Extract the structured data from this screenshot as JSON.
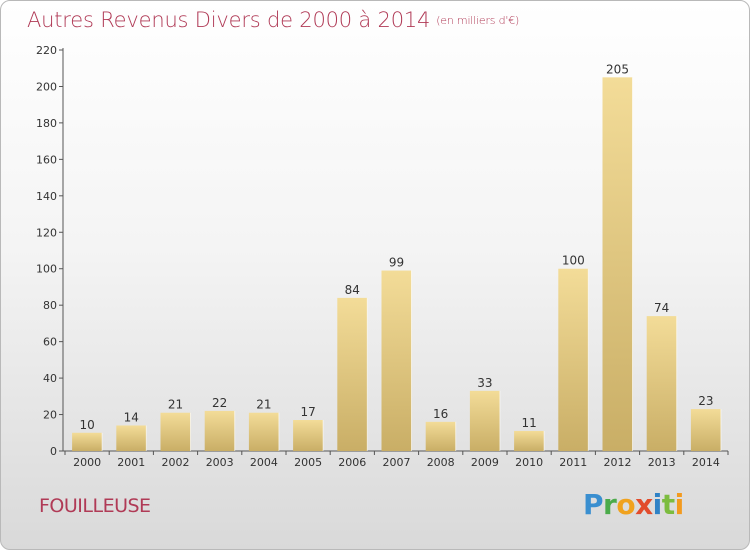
{
  "header": {
    "title": "Autres Revenus Divers de 2000 à 2014",
    "unit": "(en milliers d'€)"
  },
  "footer": {
    "commune": "FOUILLEUSE",
    "logo": "Proxiti"
  },
  "colors": {
    "title": "#b03a56",
    "bar_light": "#f3dc98",
    "bar_dark": "#c9ae66",
    "axis": "#555555"
  },
  "chart_data": {
    "type": "bar",
    "title": "Autres Revenus Divers de 2000 à 2014",
    "subtitle": "(en milliers d'€)",
    "xlabel": "",
    "ylabel": "",
    "categories": [
      "2000",
      "2001",
      "2002",
      "2003",
      "2004",
      "2005",
      "2006",
      "2007",
      "2008",
      "2009",
      "2010",
      "2011",
      "2012",
      "2013",
      "2014"
    ],
    "values": [
      10,
      14,
      21,
      22,
      21,
      17,
      84,
      99,
      16,
      33,
      11,
      100,
      205,
      74,
      23
    ],
    "yticks": [
      0,
      20,
      40,
      60,
      80,
      100,
      120,
      140,
      160,
      180,
      200,
      220
    ],
    "ylim": [
      0,
      220
    ],
    "grid": false,
    "legend": "none",
    "data_labels": true
  }
}
